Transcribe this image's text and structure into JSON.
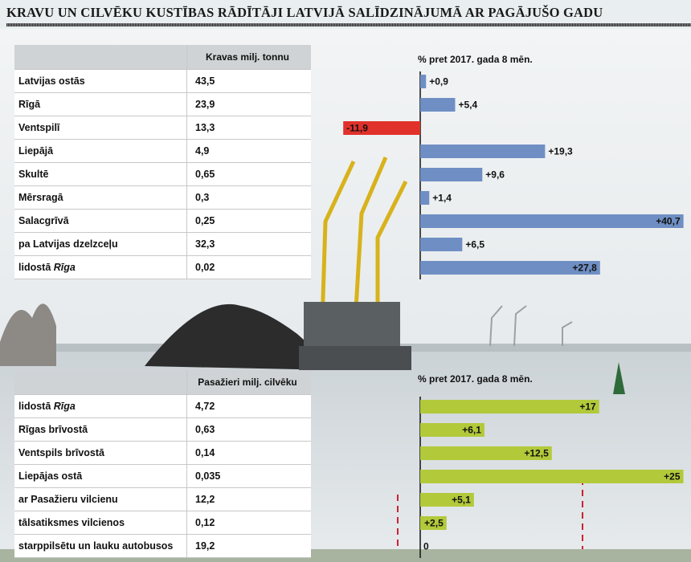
{
  "title": "KRAVU UN CILVĒKU KUSTĪBAS RĀDĪTĀJI LATVIJĀ SALĪDZINĀJUMĀ AR PAGĀJUŠO GADU",
  "colors": {
    "positive_cargo": "#6f8fc4",
    "negative_cargo": "#e0322b",
    "positive_passengers": "#b2c93a",
    "axis": "#111111"
  },
  "chart_data": [
    {
      "type": "bar",
      "orientation": "horizontal",
      "table_header": [
        "",
        "Kravas milj. tonnu"
      ],
      "xlabel": "% pret 2017. gada 8 mēn.",
      "categories": [
        "Latvijas ostās",
        "Rīgā",
        "Ventspilī",
        "Liepājā",
        "Skultē",
        "Mērsragā",
        "Salacgrīvā",
        "pa Latvijas dzelzceļu",
        "lidostā Rīga"
      ],
      "category_emphasis": [
        "",
        "",
        "",
        "",
        "",
        "",
        "",
        "",
        "Rīga"
      ],
      "table_values": [
        "43,5",
        "23,9",
        "13,3",
        "4,9",
        "0,65",
        "0,3",
        "0,25",
        "32,3",
        "0,02"
      ],
      "values": [
        0.9,
        5.4,
        -11.9,
        19.3,
        9.6,
        1.4,
        40.7,
        6.5,
        27.8
      ],
      "value_labels": [
        "+0,9",
        "+5,4",
        "-11,9",
        "+19,3",
        "+9,6",
        "+1,4",
        "+40,7",
        "+6,5",
        "+27,8"
      ],
      "label_inside": [
        false,
        false,
        true,
        false,
        false,
        false,
        true,
        false,
        true
      ],
      "xlim": [
        -13,
        41
      ]
    },
    {
      "type": "bar",
      "orientation": "horizontal",
      "table_header": [
        "",
        "Pasažieri milj. cilvēku"
      ],
      "xlabel": "% pret 2017. gada 8 mēn.",
      "categories": [
        "lidostā Rīga",
        "Rīgas brīvostā",
        "Ventspils brīvostā",
        "Liepājas ostā",
        "ar Pasažieru vilcienu",
        "tālsatiksmes vilcienos",
        "starppilsētu un lauku autobusos"
      ],
      "category_emphasis": [
        "Rīga",
        "",
        "",
        "",
        "",
        "",
        ""
      ],
      "table_values": [
        "4,72",
        "0,63",
        "0,14",
        "0,035",
        "12,2",
        "0,12",
        "19,2"
      ],
      "values": [
        17,
        6.1,
        12.5,
        25,
        5.1,
        2.5,
        0
      ],
      "value_labels": [
        "+17",
        "+6,1",
        "+12,5",
        "+25",
        "+5,1",
        "+2,5",
        "0"
      ],
      "label_inside": [
        true,
        true,
        true,
        true,
        true,
        true,
        false
      ],
      "xlim": [
        0,
        25
      ]
    }
  ]
}
